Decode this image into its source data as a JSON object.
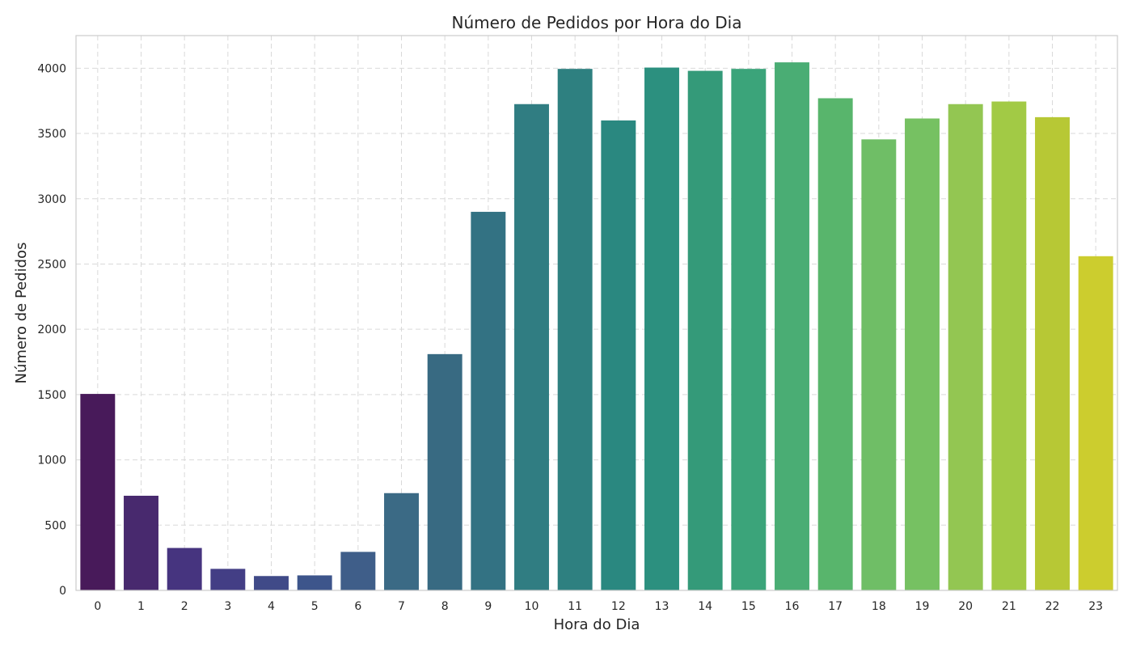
{
  "chart_data": {
    "type": "bar",
    "title": "Número de Pedidos por Hora do Dia",
    "xlabel": "Hora do Dia",
    "ylabel": "Número de Pedidos",
    "categories": [
      "0",
      "1",
      "2",
      "3",
      "4",
      "5",
      "6",
      "7",
      "8",
      "9",
      "10",
      "11",
      "12",
      "13",
      "14",
      "15",
      "16",
      "17",
      "18",
      "19",
      "20",
      "21",
      "22",
      "23"
    ],
    "values": [
      1505,
      725,
      325,
      165,
      110,
      115,
      295,
      745,
      1810,
      2900,
      3725,
      3995,
      3600,
      4005,
      3980,
      3995,
      4045,
      3770,
      3455,
      3615,
      3725,
      3745,
      3625,
      2560
    ],
    "colors": [
      "#481a5a",
      "#48296e",
      "#46347f",
      "#433e85",
      "#404a88",
      "#3d558b",
      "#3f5e89",
      "#3b6a85",
      "#386a82",
      "#337283",
      "#307d82",
      "#2e8080",
      "#2a8880",
      "#2c907f",
      "#349a79",
      "#3ba47a",
      "#4aad74",
      "#58b56c",
      "#6fbe66",
      "#76c162",
      "#93c652",
      "#a2ca45",
      "#b7c835",
      "#cccd2e"
    ],
    "ylim": [
      0,
      4250
    ],
    "yticks": [
      0,
      500,
      1000,
      1500,
      2000,
      2500,
      3000,
      3500,
      4000
    ],
    "grid": true
  }
}
